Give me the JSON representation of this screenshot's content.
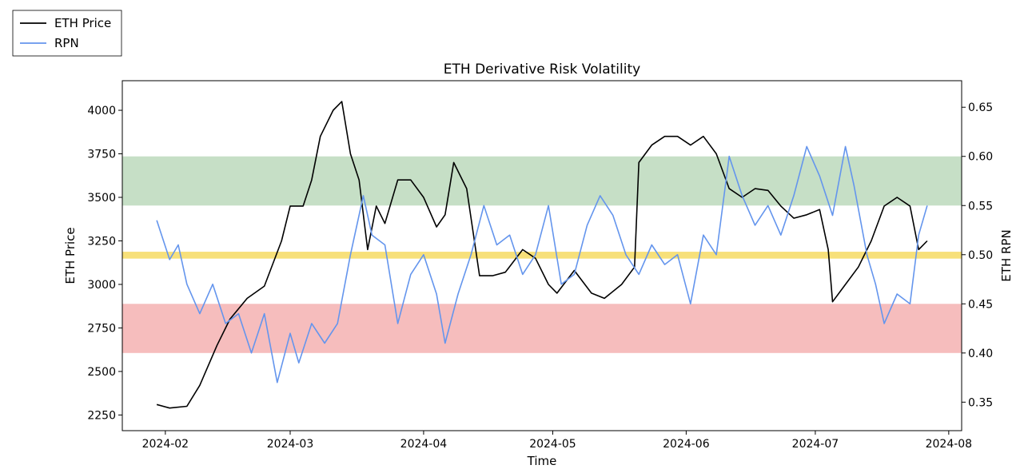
{
  "chart_data": {
    "type": "line",
    "title": "ETH Derivative Risk Volatility",
    "xlabel": "Time",
    "ylabel_left": "ETH Price",
    "ylabel_right": "ETH RPN",
    "x_ticks": [
      "2024-02",
      "2024-03",
      "2024-04",
      "2024-05",
      "2024-06",
      "2024-07",
      "2024-08"
    ],
    "x_range": [
      "2024-01-22",
      "2024-08-04"
    ],
    "y_left_range": [
      2160,
      4170
    ],
    "y_left_ticks": [
      2250,
      2500,
      2750,
      3000,
      3250,
      3500,
      3750,
      4000
    ],
    "y_right_range": [
      0.321,
      0.677
    ],
    "y_right_ticks": [
      "0.35",
      "0.40",
      "0.45",
      "0.50",
      "0.55",
      "0.60",
      "0.65"
    ],
    "grid": false,
    "legend_position": "top-left, outside the plot",
    "bands": [
      {
        "axis": "right",
        "from": 0.55,
        "to": 0.6,
        "color": "#c6dfc6"
      },
      {
        "axis": "right",
        "from": 0.496,
        "to": 0.503,
        "color": "#f7e07a"
      },
      {
        "axis": "right",
        "from": 0.4,
        "to": 0.45,
        "color": "#f6bdbd"
      }
    ],
    "series": [
      {
        "name": "ETH Price",
        "axis": "left",
        "color": "#000000",
        "points": [
          [
            "2024-01-30",
            2310
          ],
          [
            "2024-02-02",
            2290
          ],
          [
            "2024-02-06",
            2300
          ],
          [
            "2024-02-09",
            2420
          ],
          [
            "2024-02-13",
            2650
          ],
          [
            "2024-02-16",
            2800
          ],
          [
            "2024-02-20",
            2920
          ],
          [
            "2024-02-24",
            2990
          ],
          [
            "2024-02-28",
            3250
          ],
          [
            "2024-03-01",
            3450
          ],
          [
            "2024-03-04",
            3450
          ],
          [
            "2024-03-06",
            3600
          ],
          [
            "2024-03-08",
            3850
          ],
          [
            "2024-03-11",
            4000
          ],
          [
            "2024-03-13",
            4050
          ],
          [
            "2024-03-15",
            3750
          ],
          [
            "2024-03-17",
            3600
          ],
          [
            "2024-03-19",
            3200
          ],
          [
            "2024-03-21",
            3450
          ],
          [
            "2024-03-23",
            3350
          ],
          [
            "2024-03-26",
            3600
          ],
          [
            "2024-03-29",
            3600
          ],
          [
            "2024-04-01",
            3500
          ],
          [
            "2024-04-04",
            3330
          ],
          [
            "2024-04-06",
            3400
          ],
          [
            "2024-04-08",
            3700
          ],
          [
            "2024-04-11",
            3550
          ],
          [
            "2024-04-14",
            3050
          ],
          [
            "2024-04-17",
            3050
          ],
          [
            "2024-04-20",
            3070
          ],
          [
            "2024-04-24",
            3200
          ],
          [
            "2024-04-27",
            3150
          ],
          [
            "2024-04-30",
            3000
          ],
          [
            "2024-05-02",
            2950
          ],
          [
            "2024-05-06",
            3080
          ],
          [
            "2024-05-10",
            2950
          ],
          [
            "2024-05-13",
            2920
          ],
          [
            "2024-05-17",
            3000
          ],
          [
            "2024-05-20",
            3100
          ],
          [
            "2024-05-21",
            3700
          ],
          [
            "2024-05-24",
            3800
          ],
          [
            "2024-05-27",
            3850
          ],
          [
            "2024-05-30",
            3850
          ],
          [
            "2024-06-02",
            3800
          ],
          [
            "2024-06-05",
            3850
          ],
          [
            "2024-06-08",
            3750
          ],
          [
            "2024-06-11",
            3550
          ],
          [
            "2024-06-14",
            3500
          ],
          [
            "2024-06-17",
            3550
          ],
          [
            "2024-06-20",
            3540
          ],
          [
            "2024-06-23",
            3450
          ],
          [
            "2024-06-26",
            3380
          ],
          [
            "2024-06-29",
            3400
          ],
          [
            "2024-07-02",
            3430
          ],
          [
            "2024-07-04",
            3200
          ],
          [
            "2024-07-05",
            2900
          ],
          [
            "2024-07-08",
            3000
          ],
          [
            "2024-07-11",
            3100
          ],
          [
            "2024-07-14",
            3250
          ],
          [
            "2024-07-17",
            3450
          ],
          [
            "2024-07-20",
            3500
          ],
          [
            "2024-07-23",
            3450
          ],
          [
            "2024-07-25",
            3200
          ],
          [
            "2024-07-27",
            3250
          ]
        ]
      },
      {
        "name": "RPN",
        "axis": "right",
        "color": "#6495ed",
        "points": [
          [
            "2024-01-30",
            0.535
          ],
          [
            "2024-02-02",
            0.495
          ],
          [
            "2024-02-04",
            0.51
          ],
          [
            "2024-02-06",
            0.47
          ],
          [
            "2024-02-09",
            0.44
          ],
          [
            "2024-02-12",
            0.47
          ],
          [
            "2024-02-15",
            0.43
          ],
          [
            "2024-02-18",
            0.44
          ],
          [
            "2024-02-21",
            0.4
          ],
          [
            "2024-02-24",
            0.44
          ],
          [
            "2024-02-27",
            0.37
          ],
          [
            "2024-03-01",
            0.42
          ],
          [
            "2024-03-03",
            0.39
          ],
          [
            "2024-03-06",
            0.43
          ],
          [
            "2024-03-09",
            0.41
          ],
          [
            "2024-03-12",
            0.43
          ],
          [
            "2024-03-15",
            0.5
          ],
          [
            "2024-03-18",
            0.56
          ],
          [
            "2024-03-20",
            0.52
          ],
          [
            "2024-03-23",
            0.51
          ],
          [
            "2024-03-26",
            0.43
          ],
          [
            "2024-03-29",
            0.48
          ],
          [
            "2024-04-01",
            0.5
          ],
          [
            "2024-04-04",
            0.46
          ],
          [
            "2024-04-06",
            0.41
          ],
          [
            "2024-04-09",
            0.46
          ],
          [
            "2024-04-12",
            0.5
          ],
          [
            "2024-04-15",
            0.55
          ],
          [
            "2024-04-18",
            0.51
          ],
          [
            "2024-04-21",
            0.52
          ],
          [
            "2024-04-24",
            0.48
          ],
          [
            "2024-04-27",
            0.5
          ],
          [
            "2024-04-30",
            0.55
          ],
          [
            "2024-05-03",
            0.47
          ],
          [
            "2024-05-06",
            0.48
          ],
          [
            "2024-05-09",
            0.53
          ],
          [
            "2024-05-12",
            0.56
          ],
          [
            "2024-05-15",
            0.54
          ],
          [
            "2024-05-18",
            0.5
          ],
          [
            "2024-05-21",
            0.48
          ],
          [
            "2024-05-24",
            0.51
          ],
          [
            "2024-05-27",
            0.49
          ],
          [
            "2024-05-30",
            0.5
          ],
          [
            "2024-06-02",
            0.45
          ],
          [
            "2024-06-05",
            0.52
          ],
          [
            "2024-06-08",
            0.5
          ],
          [
            "2024-06-11",
            0.6
          ],
          [
            "2024-06-14",
            0.56
          ],
          [
            "2024-06-17",
            0.53
          ],
          [
            "2024-06-20",
            0.55
          ],
          [
            "2024-06-23",
            0.52
          ],
          [
            "2024-06-26",
            0.56
          ],
          [
            "2024-06-29",
            0.61
          ],
          [
            "2024-07-02",
            0.58
          ],
          [
            "2024-07-05",
            0.54
          ],
          [
            "2024-07-08",
            0.61
          ],
          [
            "2024-07-10",
            0.57
          ],
          [
            "2024-07-13",
            0.5
          ],
          [
            "2024-07-15",
            0.47
          ],
          [
            "2024-07-17",
            0.43
          ],
          [
            "2024-07-20",
            0.46
          ],
          [
            "2024-07-23",
            0.45
          ],
          [
            "2024-07-25",
            0.52
          ],
          [
            "2024-07-27",
            0.55
          ]
        ]
      }
    ]
  }
}
